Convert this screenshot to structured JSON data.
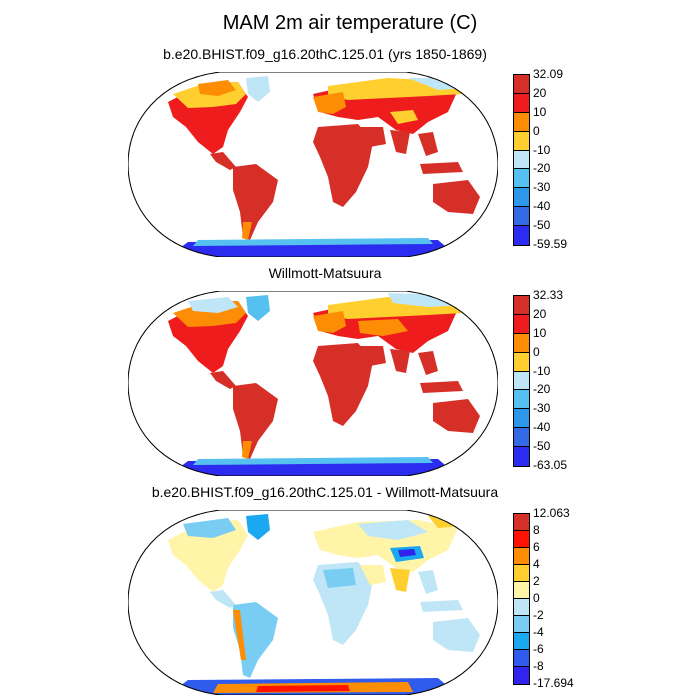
{
  "title": "MAM 2m air temperature (C)",
  "panels": [
    {
      "title": "b.e20.BHIST.f09_g16.20thC.125.01 (yrs 1850-1869)",
      "labels": [
        "32.09",
        "20",
        "10",
        "0",
        "-10",
        "-20",
        "-30",
        "-40",
        "-50",
        "-59.59"
      ],
      "colors": [
        "#d62f27",
        "#ee1c1c",
        "#fd8d04",
        "#fecf2f",
        "#bfe6f6",
        "#56c1f0",
        "#2d97ea",
        "#356ae6",
        "#2c2bf0"
      ]
    },
    {
      "title": "Willmott-Matsuura",
      "labels": [
        "32.33",
        "20",
        "10",
        "0",
        "-10",
        "-20",
        "-30",
        "-40",
        "-50",
        "-63.05"
      ],
      "colors": [
        "#d62f27",
        "#ee1c1c",
        "#fd8d04",
        "#fecf2f",
        "#bfe6f6",
        "#56c1f0",
        "#2d97ea",
        "#356ae6",
        "#2c2bf0"
      ]
    },
    {
      "title": "b.e20.BHIST.f09_g16.20thC.125.01 - Willmott-Matsuura",
      "labels": [
        "12.063",
        "8",
        "6",
        "4",
        "2",
        "0",
        "-2",
        "-4",
        "-6",
        "-8",
        "-17.694"
      ],
      "colors": [
        "#d62f27",
        "#ff1200",
        "#fd8d04",
        "#fecf2f",
        "#fff4a8",
        "#bfe6f6",
        "#79cdf2",
        "#1aa8f0",
        "#2f5cec",
        "#3124ee"
      ]
    }
  ]
}
